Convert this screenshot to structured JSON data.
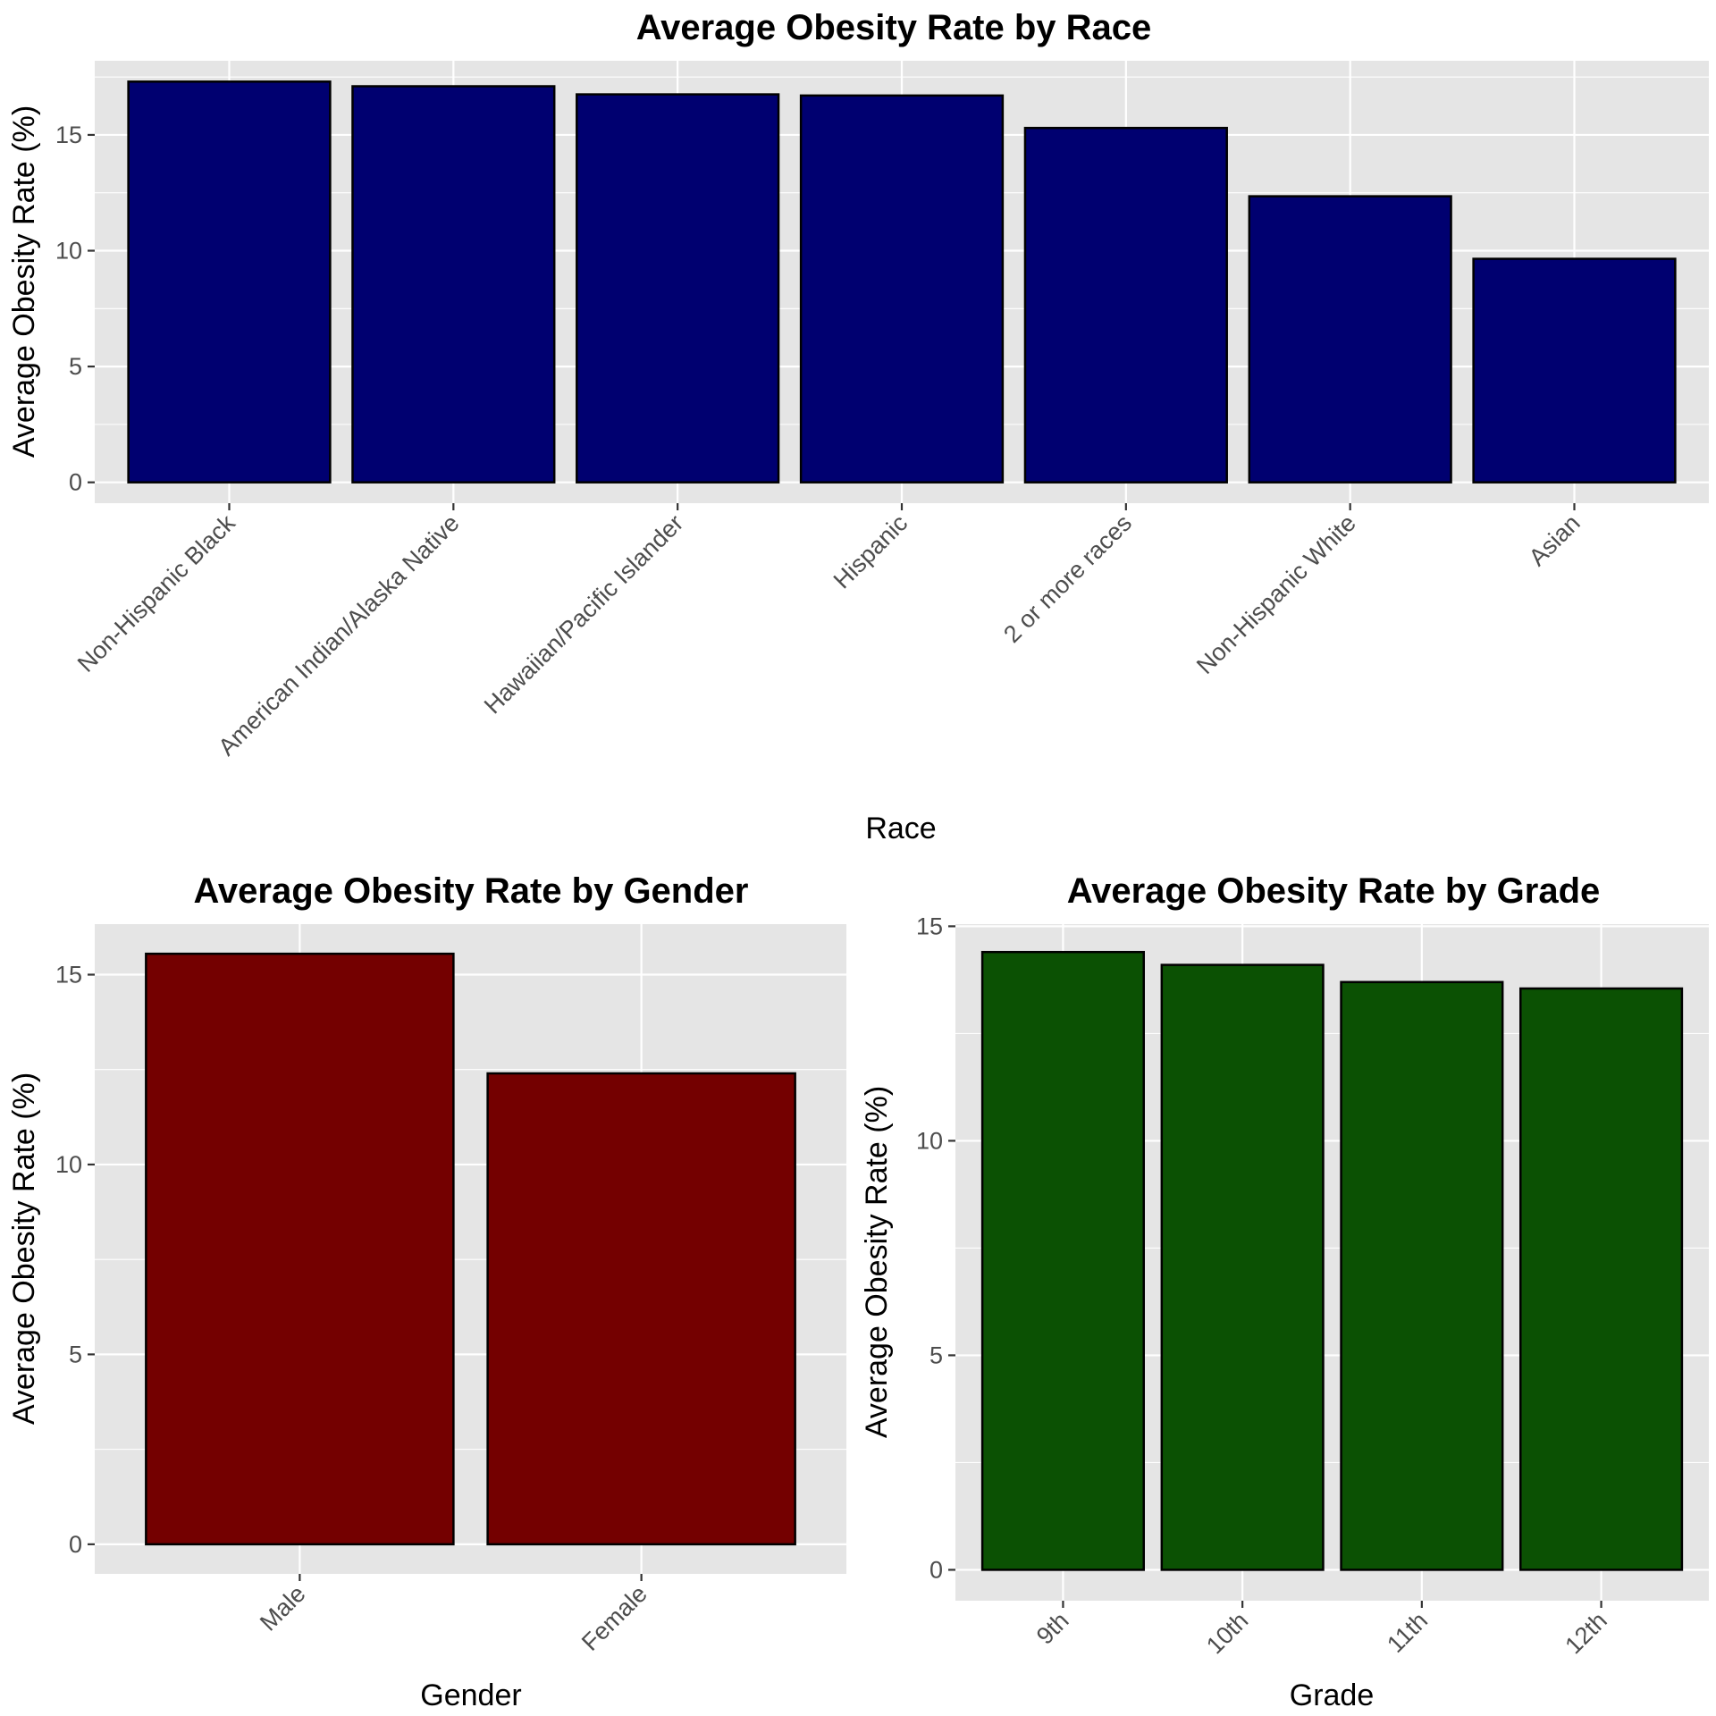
{
  "chart_data": [
    {
      "type": "bar",
      "title": "Average Obesity Rate by Race",
      "xlabel": "Race",
      "ylabel": "Average Obesity Rate (%)",
      "categories": [
        "Non-Hispanic Black",
        "American Indian/Alaska Native",
        "Hawaiian/Pacific Islander",
        "Hispanic",
        "2 or more races",
        "Non-Hispanic White",
        "Asian"
      ],
      "values": [
        17.3,
        17.1,
        16.75,
        16.7,
        15.3,
        12.35,
        9.65
      ],
      "ylim": [
        -0.9,
        18.2
      ],
      "yticks": [
        0,
        5,
        10,
        15
      ],
      "bar_color": "#000070",
      "grid": true
    },
    {
      "type": "bar",
      "title": "Average Obesity Rate by Gender",
      "xlabel": "Gender",
      "ylabel": "Average Obesity Rate (%)",
      "categories": [
        "Male",
        "Female"
      ],
      "values": [
        15.55,
        12.4
      ],
      "ylim": [
        -0.78,
        16.33
      ],
      "yticks": [
        0,
        5,
        10,
        15
      ],
      "bar_color": "#740000",
      "grid": true
    },
    {
      "type": "bar",
      "title": "Average Obesity Rate by Grade",
      "xlabel": "Grade",
      "ylabel": "Average Obesity Rate (%)",
      "categories": [
        "9th",
        "10th",
        "11th",
        "12th"
      ],
      "values": [
        14.4,
        14.1,
        13.7,
        13.55
      ],
      "ylim": [
        -0.72,
        15.05
      ],
      "yticks": [
        0,
        5,
        10,
        15
      ],
      "bar_color": "#0b5103",
      "grid": true
    }
  ]
}
